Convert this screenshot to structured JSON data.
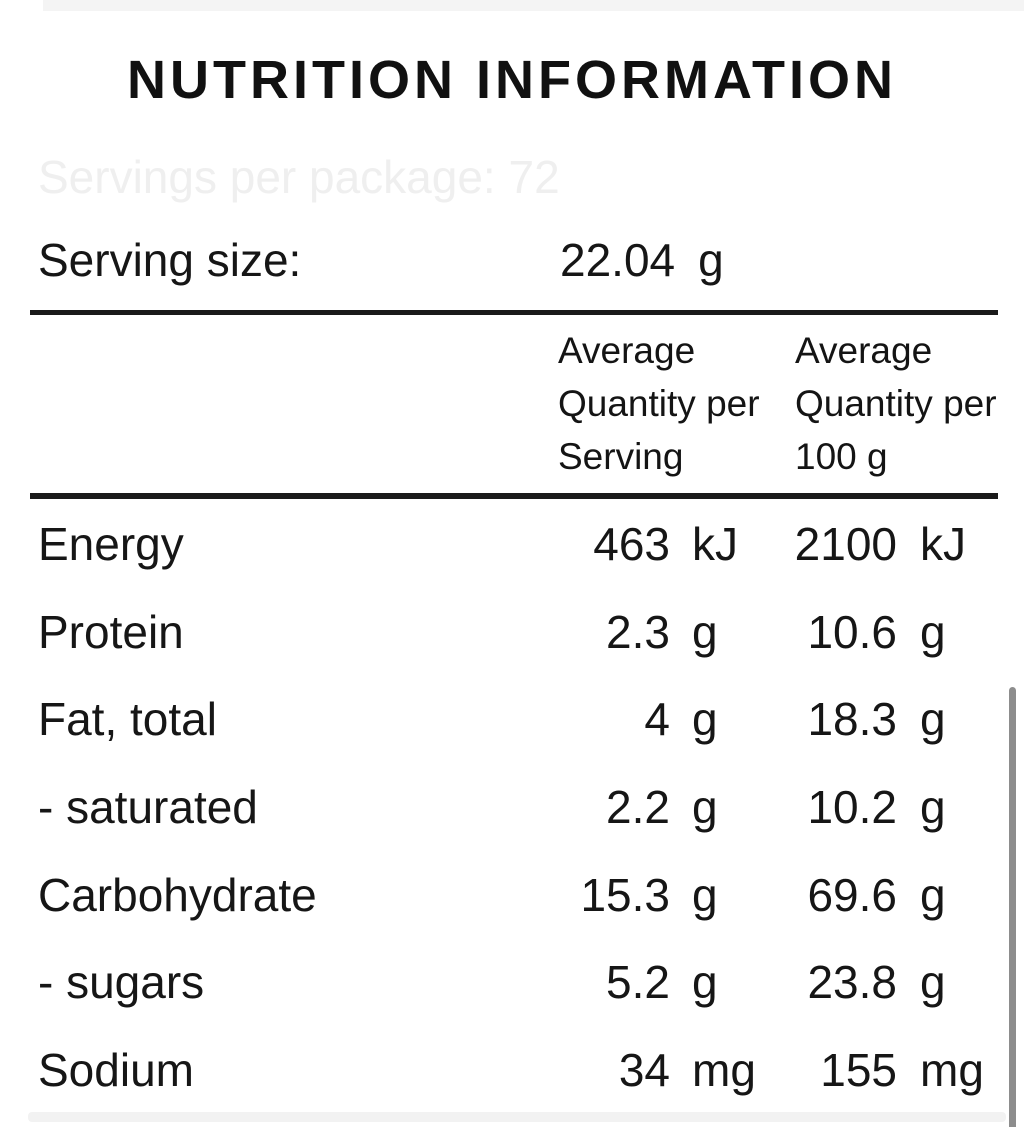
{
  "title": "NUTRITION INFORMATION",
  "servings_per_package": "Servings per package: 72",
  "serving_size": {
    "label": "Serving size:",
    "value": "22.04",
    "unit": "g"
  },
  "table": {
    "col_headers": {
      "per_serving": "Average\nQuantity per\nServing",
      "per_100g": "Average\nQuantity per\n100 g"
    },
    "rows": [
      {
        "label": "Energy",
        "serving_value": "463",
        "serving_unit": "kJ",
        "per100_value": "2100",
        "per100_unit": "kJ"
      },
      {
        "label": "Protein",
        "serving_value": "2.3",
        "serving_unit": "g",
        "per100_value": "10.6",
        "per100_unit": "g"
      },
      {
        "label": "Fat, total",
        "serving_value": "4",
        "serving_unit": "g",
        "per100_value": "18.3",
        "per100_unit": "g"
      },
      {
        "label": "- saturated",
        "serving_value": "2.2",
        "serving_unit": "g",
        "per100_value": "10.2",
        "per100_unit": "g"
      },
      {
        "label": "Carbohydrate",
        "serving_value": "15.3",
        "serving_unit": "g",
        "per100_value": "69.6",
        "per100_unit": "g"
      },
      {
        "label": "- sugars",
        "serving_value": "5.2",
        "serving_unit": "g",
        "per100_value": "23.8",
        "per100_unit": "g"
      },
      {
        "label": "Sodium",
        "serving_value": "34",
        "serving_unit": "mg",
        "per100_value": "155",
        "per100_unit": "mg"
      }
    ]
  },
  "colors": {
    "background": "#ffffff",
    "text": "#161616",
    "rule": "#1a1a1a",
    "ghost_text": "#efefef",
    "edge_strip": "#f4f4f4",
    "scrollbar_thumb": "#8d8d8d"
  }
}
